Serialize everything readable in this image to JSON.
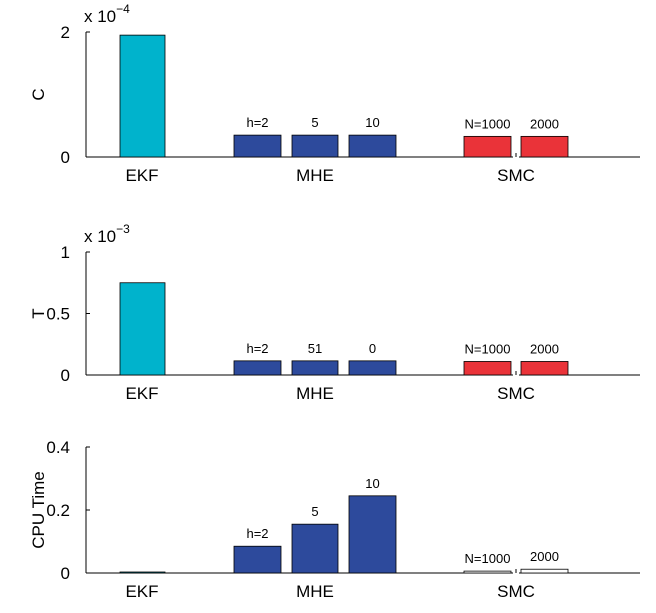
{
  "colors": {
    "ekf": "#00b3cc",
    "mhe": "#2d4a9c",
    "smc": "#ea3339",
    "smc_cpu": "#ffffff",
    "axis": "#000000",
    "bar_edge": "#000000"
  },
  "chart_data": [
    {
      "type": "bar",
      "ylabel": "C",
      "scale_base": "x 10",
      "scale_exp": "−4",
      "ylim": [
        0,
        2
      ],
      "yticks": [
        0,
        2
      ],
      "ytick_labels": [
        "0",
        "2"
      ],
      "groups": [
        "EKF",
        "MHE",
        "SMC"
      ],
      "bars": [
        {
          "group": "EKF",
          "label": "",
          "value": 1.95,
          "color_key": "ekf"
        },
        {
          "group": "MHE",
          "label": "h=2",
          "value": 0.35,
          "color_key": "mhe"
        },
        {
          "group": "MHE",
          "label": "5",
          "value": 0.35,
          "color_key": "mhe"
        },
        {
          "group": "MHE",
          "label": "10",
          "value": 0.35,
          "color_key": "mhe"
        },
        {
          "group": "SMC",
          "label": "N=1000",
          "value": 0.33,
          "color_key": "smc"
        },
        {
          "group": "SMC",
          "label": "2000",
          "value": 0.33,
          "color_key": "smc"
        }
      ]
    },
    {
      "type": "bar",
      "ylabel": "T",
      "scale_base": "x 10",
      "scale_exp": "−3",
      "ylim": [
        0,
        1
      ],
      "yticks": [
        0,
        0.5,
        1
      ],
      "ytick_labels": [
        "0",
        "0.5",
        "1"
      ],
      "groups": [
        "EKF",
        "MHE",
        "SMC"
      ],
      "bars": [
        {
          "group": "EKF",
          "label": "",
          "value": 0.75,
          "color_key": "ekf"
        },
        {
          "group": "MHE",
          "label": "h=2",
          "value": 0.115,
          "color_key": "mhe"
        },
        {
          "group": "MHE",
          "label": "51",
          "value": 0.115,
          "color_key": "mhe"
        },
        {
          "group": "MHE",
          "label": "0",
          "value": 0.115,
          "color_key": "mhe"
        },
        {
          "group": "SMC",
          "label": "N=1000",
          "value": 0.11,
          "color_key": "smc"
        },
        {
          "group": "SMC",
          "label": "2000",
          "value": 0.11,
          "color_key": "smc"
        }
      ]
    },
    {
      "type": "bar",
      "ylabel": "CPU Time",
      "scale_base": "",
      "scale_exp": "",
      "ylim": [
        0,
        0.4
      ],
      "yticks": [
        0,
        0.2,
        0.4
      ],
      "ytick_labels": [
        "0",
        "0.2",
        "0.4"
      ],
      "groups": [
        "EKF",
        "MHE",
        "SMC"
      ],
      "bars": [
        {
          "group": "EKF",
          "label": "",
          "value": 0.002,
          "color_key": "ekf"
        },
        {
          "group": "MHE",
          "label": "h=2",
          "value": 0.085,
          "color_key": "mhe"
        },
        {
          "group": "MHE",
          "label": "5",
          "value": 0.155,
          "color_key": "mhe"
        },
        {
          "group": "MHE",
          "label": "10",
          "value": 0.245,
          "color_key": "mhe"
        },
        {
          "group": "SMC",
          "label": "N=1000",
          "value": 0.006,
          "color_key": "smc_cpu"
        },
        {
          "group": "SMC",
          "label": "2000",
          "value": 0.012,
          "color_key": "smc_cpu"
        }
      ]
    }
  ]
}
